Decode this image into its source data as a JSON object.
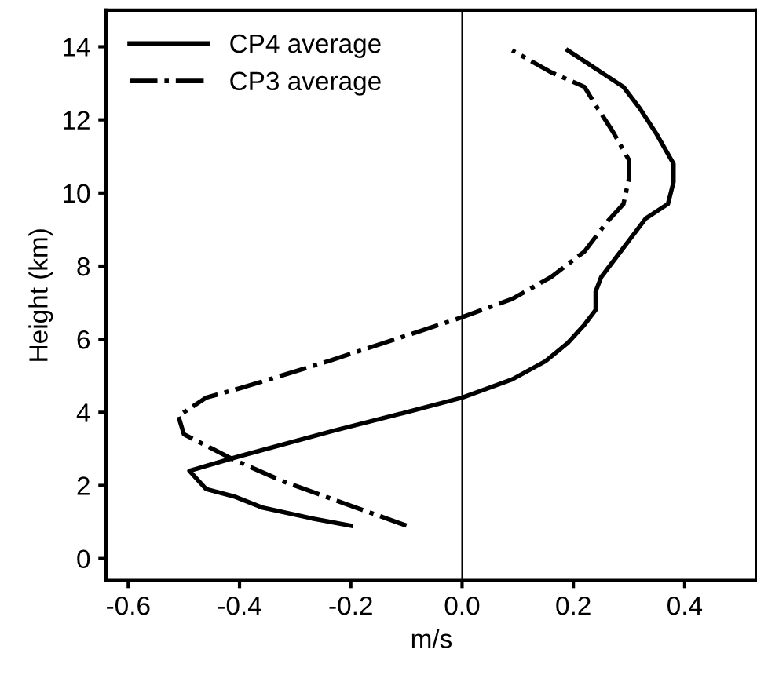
{
  "chart_data": {
    "type": "line",
    "xlabel": "m/s",
    "ylabel": "Height (km)",
    "xlim": [
      -0.64,
      0.53
    ],
    "ylim": [
      -0.6,
      15
    ],
    "xticks": [
      {
        "value": -0.6,
        "label": "-0.6"
      },
      {
        "value": -0.4,
        "label": "-0.4"
      },
      {
        "value": -0.2,
        "label": "-0.2"
      },
      {
        "value": 0,
        "label": "0.0"
      },
      {
        "value": 0.2,
        "label": "0.2"
      },
      {
        "value": 0.4,
        "label": "0.4"
      }
    ],
    "yticks": [
      0,
      2,
      4,
      6,
      8,
      10,
      12,
      14
    ],
    "grid": false,
    "legend": "top left",
    "marker": "none",
    "ref_lines": [
      {
        "axis": "x",
        "value": 0,
        "color": "#000000",
        "line_style": "solid"
      }
    ],
    "series": [
      {
        "name": "CP4 average",
        "color": "#000000",
        "line_style": "solid",
        "x": [
          -0.2,
          -0.27,
          -0.36,
          -0.41,
          -0.46,
          -0.49,
          -0.4,
          -0.23,
          -0.1,
          0,
          0.09,
          0.15,
          0.19,
          0.22,
          0.24,
          0.24,
          0.25,
          0.28,
          0.3,
          0.33,
          0.37,
          0.38,
          0.38,
          0.35,
          0.32,
          0.29,
          0.24,
          0.19
        ],
        "values": [
          0.9,
          1.1,
          1.4,
          1.7,
          1.9,
          2.4,
          2.8,
          3.5,
          4.0,
          4.4,
          4.9,
          5.4,
          5.9,
          6.4,
          6.8,
          7.3,
          7.7,
          8.3,
          8.7,
          9.3,
          9.7,
          10.3,
          10.8,
          11.6,
          12.3,
          12.9,
          13.4,
          13.9
        ]
      },
      {
        "name": "CP3 average",
        "color": "#000000",
        "line_style": "dashdot",
        "x": [
          -0.1,
          -0.21,
          -0.32,
          -0.41,
          -0.5,
          -0.51,
          -0.46,
          -0.39,
          -0.24,
          -0.1,
          0,
          0.09,
          0.16,
          0.22,
          0.26,
          0.29,
          0.3,
          0.3,
          0.27,
          0.24,
          0.22,
          0.16,
          0.09
        ],
        "values": [
          0.9,
          1.5,
          2.1,
          2.7,
          3.4,
          3.9,
          4.4,
          4.7,
          5.4,
          6.1,
          6.6,
          7.1,
          7.7,
          8.4,
          9.2,
          9.7,
          10.4,
          10.9,
          11.7,
          12.4,
          12.9,
          13.3,
          13.9
        ]
      }
    ]
  }
}
